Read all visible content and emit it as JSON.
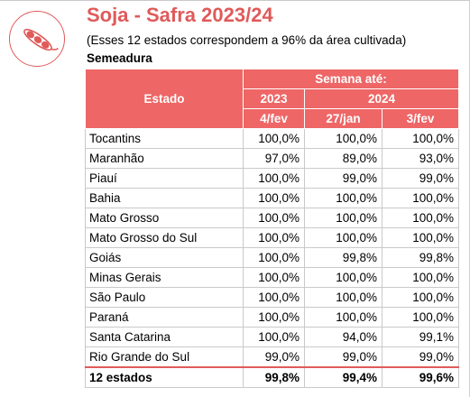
{
  "header": {
    "title": "Soja - Safra 2023/24",
    "subtitle": "(Esses 12 estados correspondem a 96% da área cultivada)",
    "section": "Semeadura",
    "logo_icon": "soybean-pod-icon",
    "accent_color": "#e05a5a",
    "header_bg_color": "#ee6666"
  },
  "table": {
    "col_estado": "Estado",
    "col_group": "Semana até:",
    "year_2023": "2023",
    "year_2024": "2024",
    "date_1": "4/fev",
    "date_2": "27/jan",
    "date_3": "3/fev",
    "rows": [
      {
        "estado": "Tocantins",
        "v1": "100,0%",
        "v2": "100,0%",
        "v3": "100,0%"
      },
      {
        "estado": "Maranhão",
        "v1": "97,0%",
        "v2": "89,0%",
        "v3": "93,0%"
      },
      {
        "estado": "Piauí",
        "v1": "100,0%",
        "v2": "99,0%",
        "v3": "99,0%"
      },
      {
        "estado": "Bahia",
        "v1": "100,0%",
        "v2": "100,0%",
        "v3": "100,0%"
      },
      {
        "estado": "Mato Grosso",
        "v1": "100,0%",
        "v2": "100,0%",
        "v3": "100,0%"
      },
      {
        "estado": "Mato Grosso do Sul",
        "v1": "100,0%",
        "v2": "100,0%",
        "v3": "100,0%"
      },
      {
        "estado": "Goiás",
        "v1": "100,0%",
        "v2": "99,8%",
        "v3": "99,8%"
      },
      {
        "estado": "Minas Gerais",
        "v1": "100,0%",
        "v2": "100,0%",
        "v3": "100,0%"
      },
      {
        "estado": "São Paulo",
        "v1": "100,0%",
        "v2": "100,0%",
        "v3": "100,0%"
      },
      {
        "estado": "Paraná",
        "v1": "100,0%",
        "v2": "100,0%",
        "v3": "100,0%"
      },
      {
        "estado": "Santa Catarina",
        "v1": "100,0%",
        "v2": "94,0%",
        "v3": "99,1%"
      },
      {
        "estado": "Rio Grande do Sul",
        "v1": "99,0%",
        "v2": "99,0%",
        "v3": "99,0%"
      }
    ],
    "total": {
      "estado": "12 estados",
      "v1": "99,8%",
      "v2": "99,4%",
      "v3": "99,6%"
    }
  }
}
